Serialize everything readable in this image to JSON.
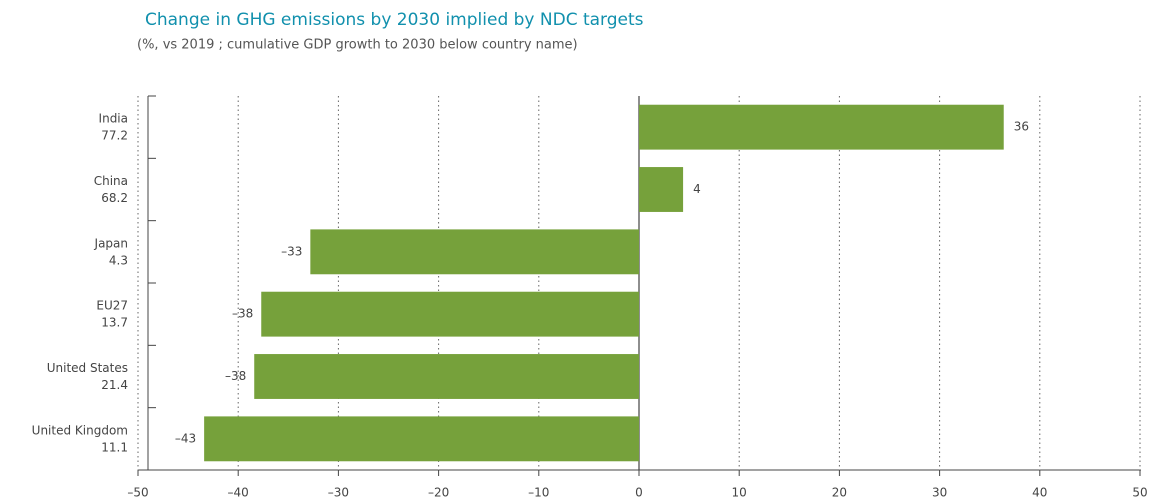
{
  "chart_data": {
    "type": "bar",
    "orientation": "horizontal",
    "title": "Change in GHG emissions by 2030 implied by NDC targets",
    "subtitle": "(%, vs 2019 ; cumulative GDP growth to 2030 below country name)",
    "categories": [
      "India",
      "China",
      "Japan",
      "EU27",
      "United States",
      "United Kingdom"
    ],
    "gdp_growth": [
      77.2,
      68.2,
      4.3,
      13.7,
      21.4,
      11.1
    ],
    "values": [
      36.4,
      4.4,
      -32.8,
      -37.7,
      -38.4,
      -43.4
    ],
    "value_labels": [
      "36",
      "4",
      "–33",
      "–38",
      "–38",
      "–43"
    ],
    "color": "#76a13b",
    "xlim": [
      -50,
      50
    ],
    "xticks": [
      {
        "value": -50,
        "label": "–50"
      },
      {
        "value": -40,
        "label": "–40"
      },
      {
        "value": -30,
        "label": "–30"
      },
      {
        "value": -20,
        "label": "–20"
      },
      {
        "value": -10,
        "label": "–10"
      },
      0,
      10,
      20,
      30,
      40,
      50
    ],
    "grid": true
  }
}
